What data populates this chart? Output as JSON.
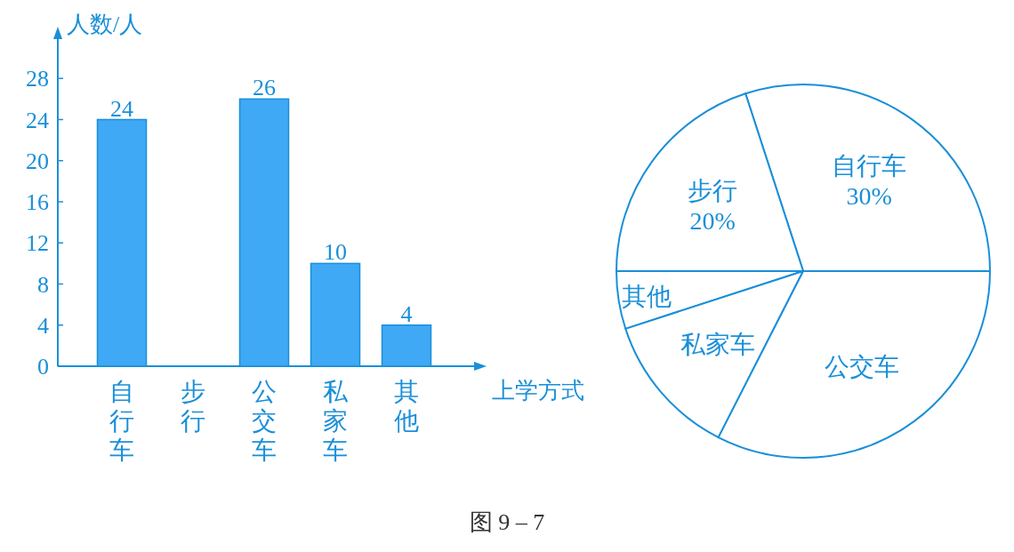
{
  "chart_data": [
    {
      "type": "bar",
      "categories": [
        "自行车",
        "步行",
        "公交车",
        "私家车",
        "其他"
      ],
      "values": [
        24,
        null,
        26,
        10,
        4
      ],
      "value_labels": [
        "24",
        null,
        "26",
        "10",
        "4"
      ],
      "color": "#3fa9f5",
      "ylim": [
        0,
        32
      ],
      "yticks": [
        0,
        4,
        8,
        12,
        16,
        20,
        24,
        28
      ],
      "ylabel": "人数/人",
      "xlabel": "上学方式",
      "annotations": [
        "图 9 – 7"
      ]
    },
    {
      "type": "pie",
      "categories": [
        "自行车",
        "步行",
        "其他",
        "私家车",
        "公交车"
      ],
      "values": [
        30,
        20,
        5,
        12.5,
        32.5
      ],
      "value_labels": [
        "30%",
        "20%",
        null,
        null,
        null
      ],
      "colors": [
        "#ffffff",
        "#ffffff",
        "#ffffff",
        "#ffffff",
        "#ffffff"
      ]
    }
  ]
}
